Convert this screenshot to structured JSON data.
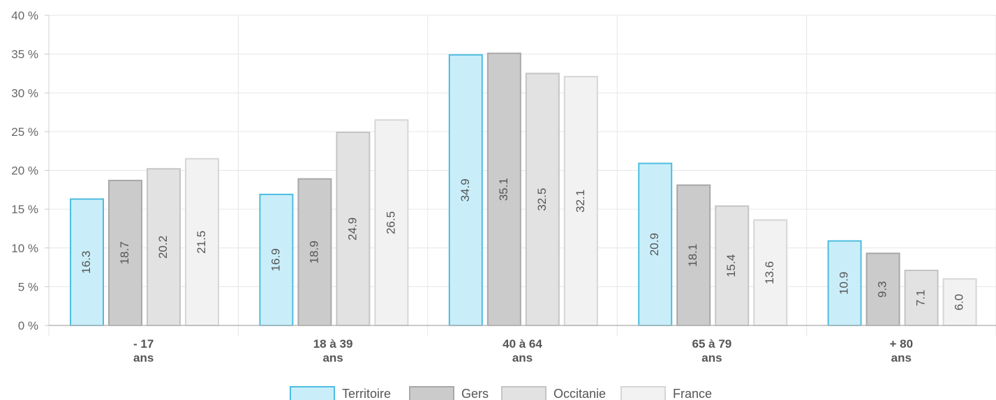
{
  "chart_data": {
    "type": "bar",
    "categories": [
      [
        "- 17",
        "ans"
      ],
      [
        "18 à 39",
        "ans"
      ],
      [
        "40 à 64",
        "ans"
      ],
      [
        "65 à 79",
        "ans"
      ],
      [
        "+ 80",
        "ans"
      ]
    ],
    "series": [
      {
        "name": "Territoire",
        "values": [
          16.3,
          16.9,
          34.9,
          20.9,
          10.9
        ],
        "labels": [
          "16.3",
          "16.9",
          "34.9",
          "20.9",
          "10.9"
        ],
        "fill": "#caeef9",
        "stroke": "#4dbde0"
      },
      {
        "name": "Gers",
        "values": [
          18.7,
          18.9,
          35.1,
          18.1,
          9.3
        ],
        "labels": [
          "18.7",
          "18.9",
          "35.1",
          "18.1",
          "9.3"
        ],
        "fill": "#cbcbcb",
        "stroke": "#a8a8a8"
      },
      {
        "name": "Occitanie",
        "values": [
          20.2,
          24.9,
          32.5,
          15.4,
          7.1
        ],
        "labels": [
          "20.2",
          "24.9",
          "32.5",
          "15.4",
          "7.1"
        ],
        "fill": "#e2e2e2",
        "stroke": "#c4c4c4"
      },
      {
        "name": "France",
        "values": [
          21.5,
          26.5,
          32.1,
          13.6,
          6.0
        ],
        "labels": [
          "21.5",
          "26.5",
          "32.1",
          "13.6",
          "6.0"
        ],
        "fill": "#f2f2f2",
        "stroke": "#d6d6d6"
      }
    ],
    "ylim": [
      0,
      40
    ],
    "yticks": [
      0,
      5,
      10,
      15,
      20,
      25,
      30,
      35,
      40
    ],
    "ytick_labels": [
      "0 %",
      "5 %",
      "10 %",
      "15 %",
      "20 %",
      "25 %",
      "30 %",
      "35 %",
      "40 %"
    ],
    "grid": true,
    "legend": "bottom-center",
    "xlabel": "",
    "ylabel": ""
  }
}
